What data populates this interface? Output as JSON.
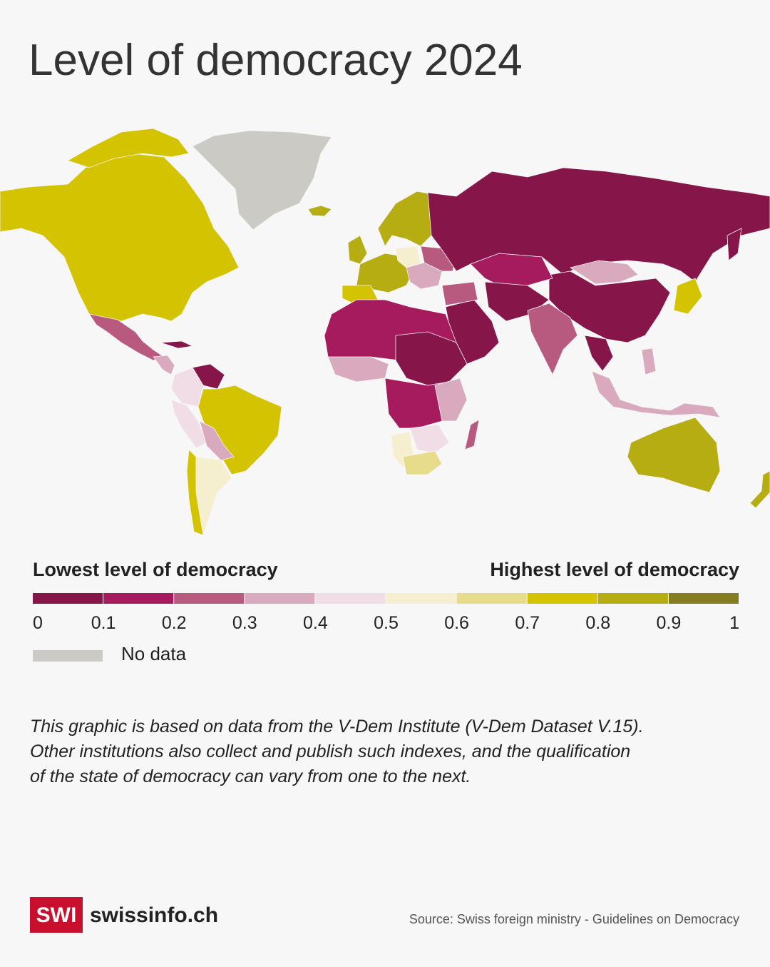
{
  "title": "Level of democracy 2024",
  "legend": {
    "low_label": "Lowest level of democracy",
    "high_label": "Highest level of democracy",
    "ticks": [
      0,
      0.1,
      0.2,
      0.3,
      0.4,
      0.5,
      0.6,
      0.7,
      0.8,
      0.9,
      1
    ],
    "colors": [
      "#86154a",
      "#a61a5e",
      "#b85a80",
      "#d9a9bd",
      "#f0dde6",
      "#f6efcf",
      "#e6dc8c",
      "#d4c300",
      "#b6ad12",
      "#857d22"
    ],
    "no_data": {
      "label": "No data",
      "color": "#cccac4"
    }
  },
  "note": {
    "lines": [
      "This graphic is based on data from the V-Dem Institute (V-Dem Dataset V.15).",
      "Other institutions also collect and publish such indexes, and the qualification",
      "of the state of democracy can vary from one to the next."
    ]
  },
  "footer": {
    "brand_mark": "SWI",
    "brand": "swissinfo.ch",
    "source": "Source: Swiss foreign ministry - Guidelines on Democracy"
  }
}
